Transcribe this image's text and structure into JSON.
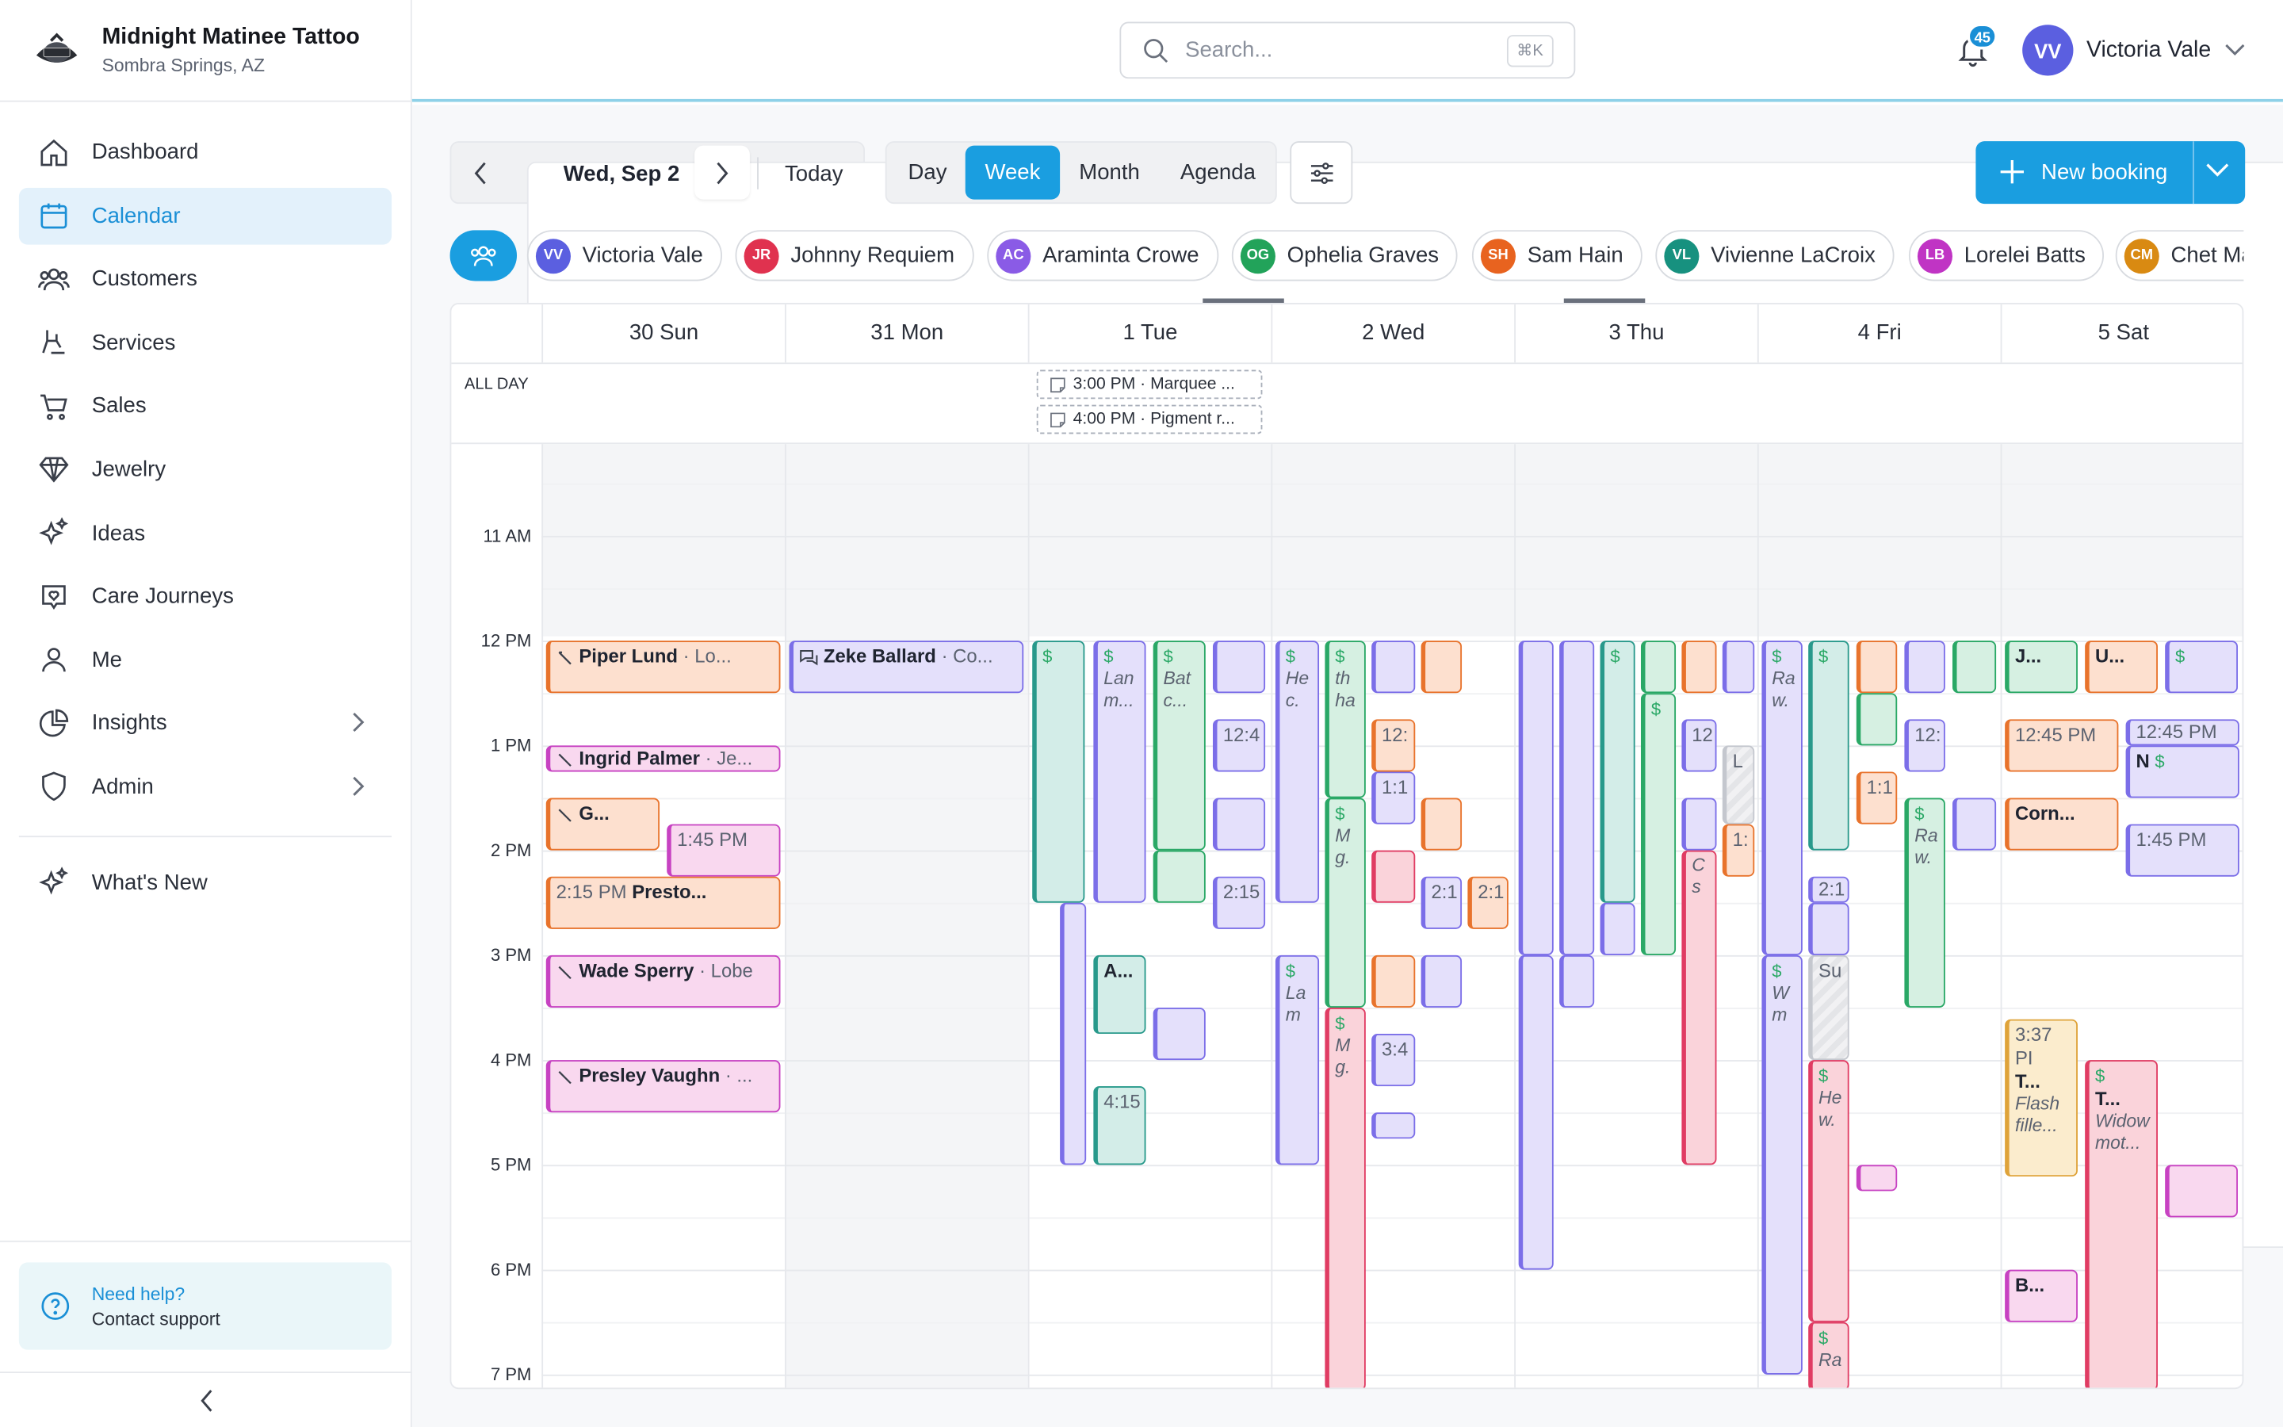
{
  "brand": {
    "name": "Midnight Matinee Tattoo",
    "location": "Sombra Springs, AZ"
  },
  "nav": {
    "items": [
      {
        "label": "Dashboard",
        "icon": "home-icon"
      },
      {
        "label": "Calendar",
        "icon": "calendar-icon",
        "active": true
      },
      {
        "label": "Customers",
        "icon": "users-icon"
      },
      {
        "label": "Services",
        "icon": "tattoo-machine-icon"
      },
      {
        "label": "Sales",
        "icon": "cart-icon"
      },
      {
        "label": "Jewelry",
        "icon": "diamond-icon"
      },
      {
        "label": "Ideas",
        "icon": "sparkles-icon"
      },
      {
        "label": "Care Journeys",
        "icon": "heart-message-icon"
      },
      {
        "label": "Me",
        "icon": "user-icon"
      },
      {
        "label": "Insights",
        "icon": "pie-chart-icon"
      },
      {
        "label": "Admin",
        "icon": "shield-icon"
      }
    ],
    "whats_new": "What's New"
  },
  "help": {
    "title": "Need help?",
    "link": "Contact support"
  },
  "topbar": {
    "search_placeholder": "Search...",
    "search_shortcut": "⌘K",
    "notifications": "45",
    "user_initials": "VV",
    "user_name": "Victoria Vale"
  },
  "toolbar": {
    "date": "Wed, Sep 2",
    "today": "Today",
    "views": [
      "Day",
      "Week",
      "Month",
      "Agenda"
    ],
    "active_view": "Week",
    "new_booking": "New booking"
  },
  "staff": [
    {
      "initials": "VV",
      "name": "Victoria Vale",
      "color": "#5b5fe0"
    },
    {
      "initials": "JR",
      "name": "Johnny Requiem",
      "color": "#e0324f"
    },
    {
      "initials": "AC",
      "name": "Araminta Crowe",
      "color": "#8a5be6"
    },
    {
      "initials": "OG",
      "name": "Ophelia Graves",
      "color": "#22a35a"
    },
    {
      "initials": "SH",
      "name": "Sam Hain",
      "color": "#e8631f"
    },
    {
      "initials": "VL",
      "name": "Vivienne LaCroix",
      "color": "#17917f"
    },
    {
      "initials": "LB",
      "name": "Lorelei Batts",
      "color": "#c034c4"
    },
    {
      "initials": "CM",
      "name": "Chet Ma",
      "color": "#d98a12"
    }
  ],
  "calendar": {
    "days": [
      "30 Sun",
      "31 Mon",
      "1 Tue",
      "2 Wed",
      "3 Thu",
      "4 Fri",
      "5 Sat"
    ],
    "all_day_label": "ALL DAY",
    "all_day_events": [
      "3:00 PM · Marquee ...",
      "4:00 PM · Pigment r..."
    ],
    "hours": [
      "11 AM",
      "12 PM",
      "1 PM",
      "2 PM",
      "3 PM",
      "4 PM",
      "5 PM",
      "6 PM",
      "7 PM"
    ],
    "events": {
      "piper": {
        "name": "Piper Lund",
        "sub": "· Lo..."
      },
      "zeke": {
        "name": "Zeke Ballard",
        "sub": "· Co..."
      },
      "ingrid": {
        "name": "Ingrid Palmer",
        "sub": "· Je..."
      },
      "g": {
        "name": "G..."
      },
      "t145a": {
        "time": "1:45 PM"
      },
      "presto": {
        "time": "2:15 PM",
        "name": "Presto..."
      },
      "wade": {
        "name": "Wade Sperry",
        "sub": "· Lobe"
      },
      "presley": {
        "name": "Presley Vaughn",
        "sub": "· ..."
      },
      "lan": {
        "text": "Lan m..."
      },
      "bat": {
        "text": "Bat c..."
      },
      "t124a": {
        "time": "12:4"
      },
      "t215a": {
        "time": "2:15"
      },
      "a": {
        "name": "A..."
      },
      "t415": {
        "time": "4:15"
      },
      "he": {
        "text": "He c."
      },
      "la": {
        "text": "La m"
      },
      "th": {
        "text": "th ha"
      },
      "m1": {
        "text": "M g."
      },
      "m2": {
        "text": "M g."
      },
      "t12a": {
        "time": "12:"
      },
      "t11a": {
        "time": "1:1"
      },
      "t21a": {
        "time": "2:1"
      },
      "t21b": {
        "time": "2:1"
      },
      "t34": {
        "time": "3:4"
      },
      "t12b": {
        "time": "12"
      },
      "l": {
        "text": "L"
      },
      "t1x": {
        "time": "1:"
      },
      "cs": {
        "text": "C s"
      },
      "t12c": {
        "time": "12:"
      },
      "t11b": {
        "time": "1:1"
      },
      "t21c": {
        "time": "2:1"
      },
      "su": {
        "text": "Su"
      },
      "ra": {
        "text": "Ra w."
      },
      "ra2": {
        "text": "Ra w."
      },
      "wm": {
        "text": "W m"
      },
      "hw": {
        "text": "He w."
      },
      "ra3": {
        "text": "Ra"
      },
      "j": {
        "name": "J..."
      },
      "u": {
        "name": "U..."
      },
      "t1245a": {
        "time": "12:45 PM"
      },
      "t1245b": {
        "time": "12:45 PM"
      },
      "n": {
        "name": "N"
      },
      "corn": {
        "name": "Corn..."
      },
      "t145b": {
        "time": "1:45 PM"
      },
      "t337": {
        "time": "3:37 PI",
        "name": "T...",
        "text": "Flash fille..."
      },
      "tw": {
        "name": "T...",
        "text": "Widow mot..."
      },
      "b": {
        "name": "B..."
      }
    }
  }
}
